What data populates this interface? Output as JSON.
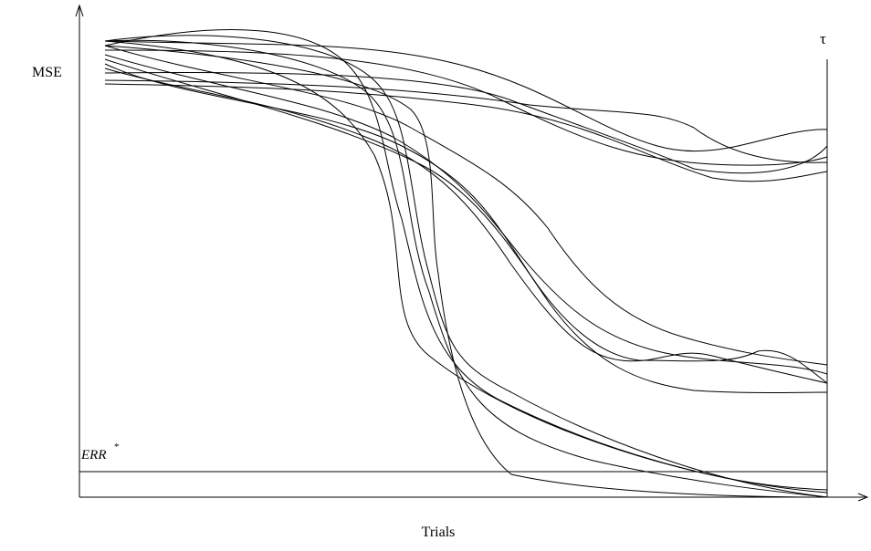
{
  "y_axis_label": "MSE",
  "x_axis_label": "Trials",
  "threshold_label": "ERR",
  "threshold_superscript": "*",
  "end_label": "τ"
}
